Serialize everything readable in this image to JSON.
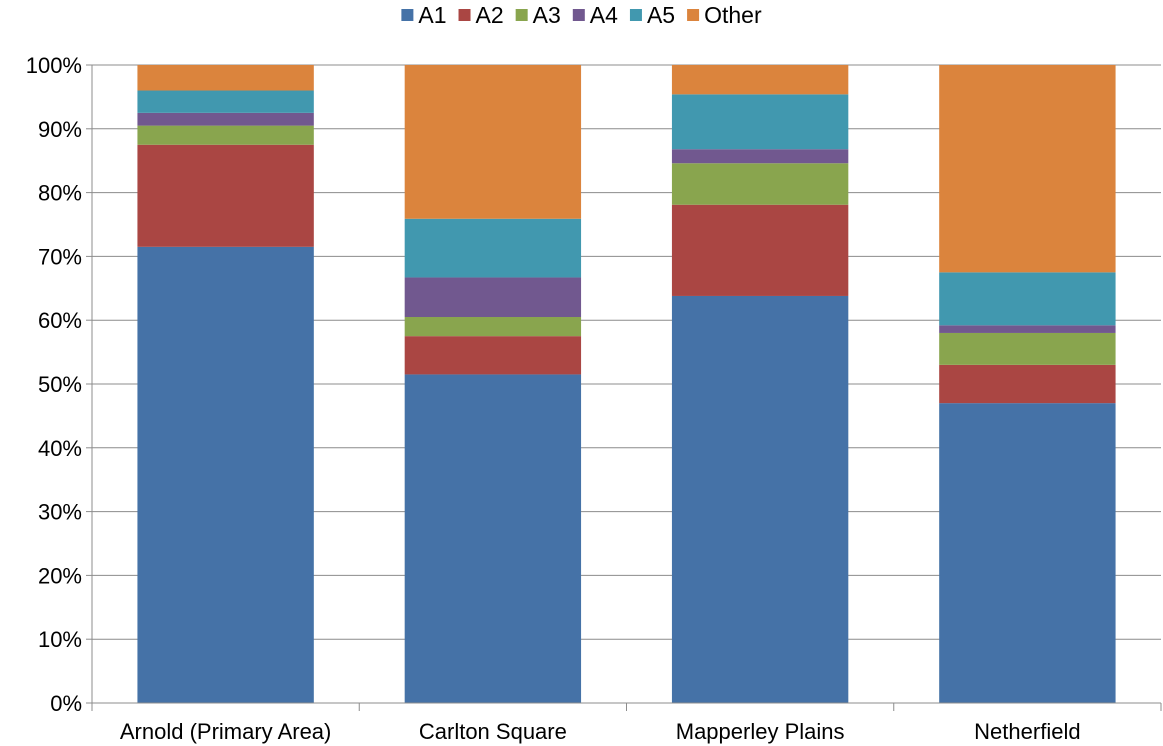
{
  "chart_data": {
    "type": "bar",
    "stacked": true,
    "percent": true,
    "categories": [
      "Arnold (Primary Area)",
      "Carlton Square",
      "Mapperley Plains",
      "Netherfield"
    ],
    "series": [
      {
        "name": "A1",
        "color": "#4572a7",
        "values": [
          71.5,
          51.5,
          63.8,
          47.0
        ]
      },
      {
        "name": "A2",
        "color": "#aa4643",
        "values": [
          16.0,
          6.0,
          14.3,
          6.0
        ]
      },
      {
        "name": "A3",
        "color": "#89a54e",
        "values": [
          3.0,
          3.0,
          6.5,
          5.0
        ]
      },
      {
        "name": "A4",
        "color": "#71588f",
        "values": [
          2.0,
          6.2,
          2.2,
          1.2
        ]
      },
      {
        "name": "A5",
        "color": "#4198af",
        "values": [
          3.5,
          9.2,
          8.6,
          8.3
        ]
      },
      {
        "name": "Other",
        "color": "#db843d",
        "values": [
          4.0,
          24.1,
          4.6,
          32.5
        ]
      }
    ],
    "y_ticks": [
      "0%",
      "10%",
      "20%",
      "30%",
      "40%",
      "50%",
      "60%",
      "70%",
      "80%",
      "90%",
      "100%"
    ],
    "ylim": [
      0,
      100
    ],
    "grid": true,
    "legend_position": "top",
    "title": "",
    "xlabel": "",
    "ylabel": ""
  }
}
